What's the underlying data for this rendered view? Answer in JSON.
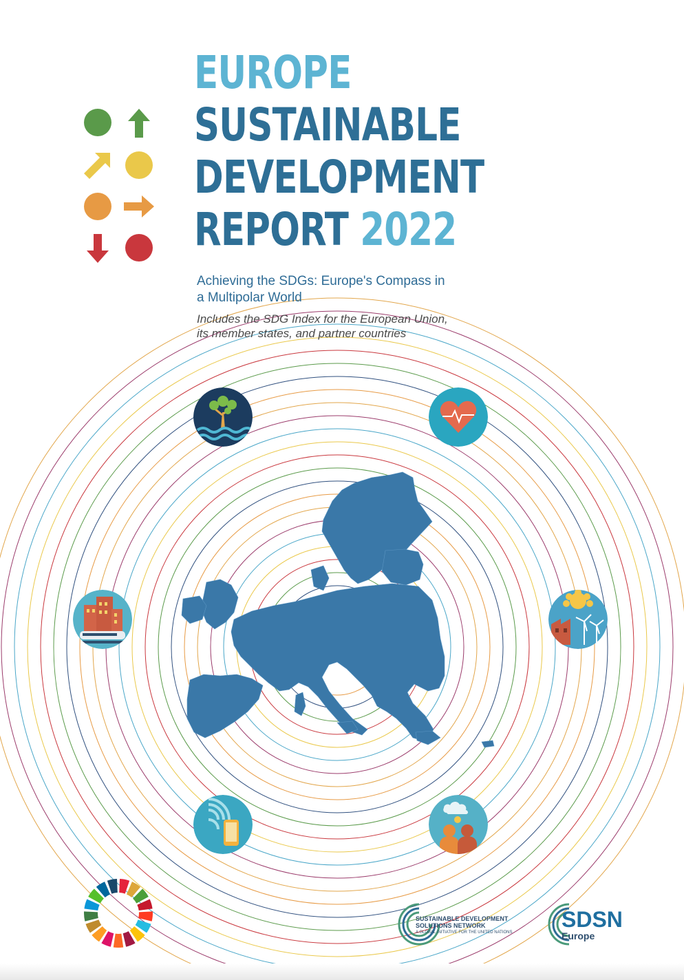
{
  "title": {
    "line1": "EUROPE",
    "line2": "SUSTAINABLE",
    "line3": "DEVELOPMENT",
    "line4": "REPORT",
    "year": "2022"
  },
  "subtitle": {
    "line1": "Achieving the SDGs: Europe's Compass in",
    "line2": "a Multipolar World"
  },
  "tagline": {
    "line1": "Includes the SDG Index for the European Union,",
    "line2": "its member states, and partner countries"
  },
  "legend_symbols": [
    {
      "icon": "green-circle-icon",
      "color": "#5a9a4a"
    },
    {
      "icon": "green-up-arrow-icon",
      "color": "#5a9a4a"
    },
    {
      "icon": "yellow-diagonal-arrow-icon",
      "color": "#eac84a"
    },
    {
      "icon": "yellow-circle-icon",
      "color": "#eac84a"
    },
    {
      "icon": "orange-circle-icon",
      "color": "#e79a44"
    },
    {
      "icon": "orange-right-arrow-icon",
      "color": "#e79a44"
    },
    {
      "icon": "red-down-arrow-icon",
      "color": "#c9373d"
    },
    {
      "icon": "red-circle-icon",
      "color": "#c9373d"
    }
  ],
  "theme_icons": [
    {
      "icon": "tree-water-icon",
      "background": "#1c3c5f"
    },
    {
      "icon": "heart-health-icon",
      "background": "#2aa6c0"
    },
    {
      "icon": "city-building-train-icon",
      "background": "#56b3c9"
    },
    {
      "icon": "sun-factory-wind-icon",
      "background": "#4ba3c8"
    },
    {
      "icon": "mobile-signal-icon",
      "background": "#3ba7c2"
    },
    {
      "icon": "people-cloud-icon",
      "background": "#55b1c7"
    }
  ],
  "colors": {
    "title_dark": "#2e6f96",
    "title_light": "#5db4d3",
    "map": "#3a78a8"
  },
  "logos": {
    "sdsn_line1": "SUSTAINABLE DEVELOPMENT",
    "sdsn_line2": "SOLUTIONS NETWORK",
    "sdsn_line3": "A GLOBAL INITIATIVE FOR THE UNITED NATIONS",
    "sdsn_europe_name": "SDSN",
    "sdsn_europe_sub": "Europe"
  }
}
